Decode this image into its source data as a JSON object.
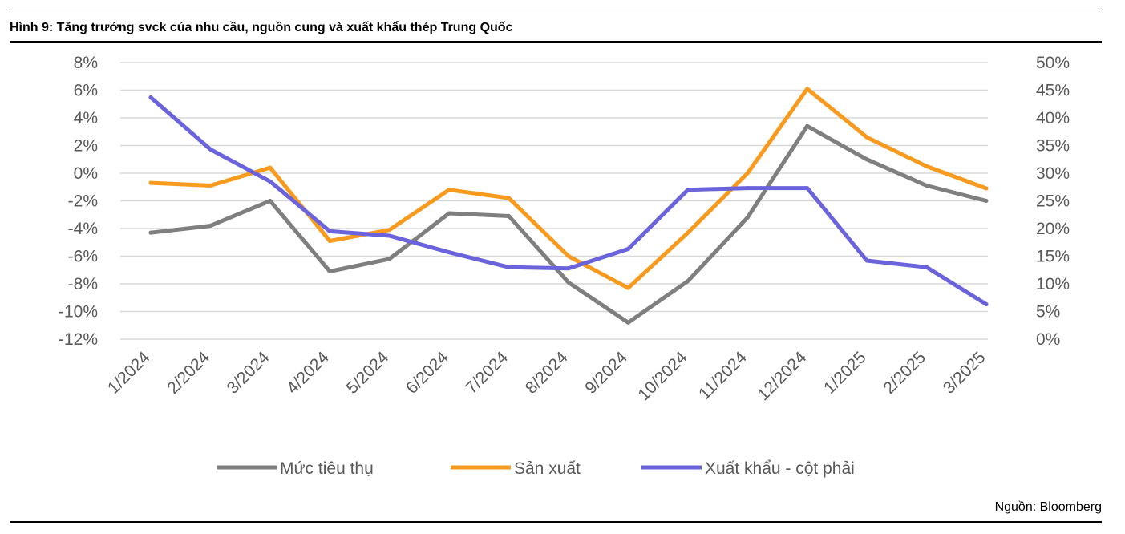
{
  "figure": {
    "title": "Hình 9: Tăng trưởng svck của nhu cầu, nguồn cung và xuất khẩu thép Trung Quốc",
    "source": "Nguồn: Bloomberg"
  },
  "colors": {
    "grid": "#d9d9d9",
    "tick_text": "#595959",
    "rule": "#000000"
  },
  "chart_data": {
    "type": "line",
    "title": "Hình 9: Tăng trưởng svck của nhu cầu, nguồn cung và xuất khẩu thép Trung Quốc",
    "categories": [
      "1/2024",
      "2/2024",
      "3/2024",
      "4/2024",
      "5/2024",
      "6/2024",
      "7/2024",
      "8/2024",
      "9/2024",
      "10/2024",
      "11/2024",
      "12/2024",
      "1/2025",
      "2/2025",
      "3/2025"
    ],
    "y_left": {
      "min": -12,
      "max": 8,
      "step": 2,
      "ticks": [
        "8%",
        "6%",
        "4%",
        "2%",
        "0%",
        "-2%",
        "-4%",
        "-6%",
        "-8%",
        "-10%",
        "-12%"
      ]
    },
    "y_right": {
      "min": 0,
      "max": 50,
      "step": 5,
      "ticks": [
        "50%",
        "45%",
        "40%",
        "35%",
        "30%",
        "25%",
        "20%",
        "15%",
        "10%",
        "5%",
        "0%"
      ]
    },
    "grid": true,
    "legend_position": "bottom",
    "series": [
      {
        "name": "Mức tiêu thụ",
        "axis": "left",
        "color": "#7f7f7f",
        "values": [
          -4.3,
          -3.8,
          -2.0,
          -7.1,
          -6.2,
          -2.9,
          -3.1,
          -7.9,
          -10.8,
          -7.8,
          -3.2,
          3.4,
          1.0,
          -0.9,
          -2.0
        ]
      },
      {
        "name": "Sản xuất",
        "axis": "left",
        "color": "#f79a1e",
        "values": [
          -0.7,
          -0.9,
          0.4,
          -4.9,
          -4.1,
          -1.2,
          -1.8,
          -6.0,
          -8.3,
          -4.3,
          0.0,
          6.1,
          2.6,
          0.5,
          -1.1
        ]
      },
      {
        "name": "Xuất khẩu - cột phải",
        "axis": "right",
        "color": "#6b63dc",
        "values": [
          43.7,
          34.3,
          28.5,
          19.5,
          18.7,
          15.7,
          13.0,
          12.8,
          16.3,
          27.0,
          27.3,
          27.3,
          14.2,
          13.0,
          6.3
        ]
      }
    ]
  }
}
